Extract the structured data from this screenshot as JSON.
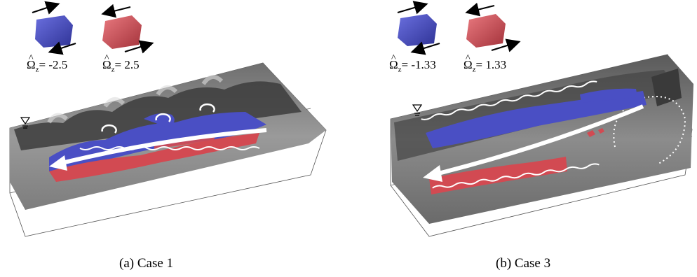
{
  "figure": {
    "panels": [
      {
        "id": "a",
        "caption": "(a) Case 1",
        "legend": [
          {
            "symbol": "Ω",
            "subscript": "z",
            "value": "= -2.5",
            "color": "#4a4fc4"
          },
          {
            "symbol": "Ω",
            "subscript": "z",
            "value": "= 2.5",
            "color": "#d24a52"
          }
        ]
      },
      {
        "id": "b",
        "caption": "(b) Case 3",
        "legend": [
          {
            "symbol": "Ω",
            "subscript": "z",
            "value": "= -1.33",
            "color": "#4a4fc4"
          },
          {
            "symbol": "Ω",
            "subscript": "z",
            "value": "= 1.33",
            "color": "#d24a52"
          }
        ]
      }
    ],
    "colors": {
      "negative_vorticity": "#4a4fc4",
      "positive_vorticity": "#d24a52",
      "surface": "#8a8a8a"
    }
  }
}
